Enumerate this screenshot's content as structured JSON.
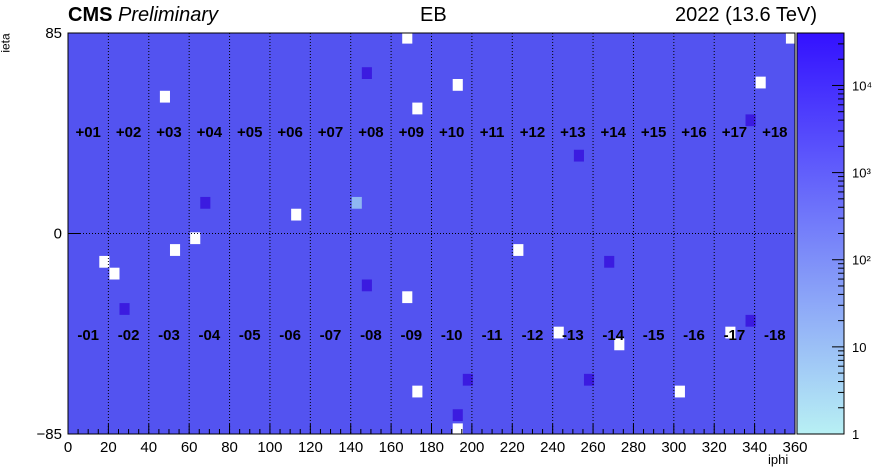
{
  "header": {
    "experiment_bold": "CMS",
    "experiment_italic": "Preliminary",
    "center_label": "EB",
    "right_label": "2022 (13.6 TeV)"
  },
  "colors": {
    "background_cell": "#5353f0",
    "colorbar_top": "#3311ff",
    "colorbar_bottom": "#b8f0f4",
    "dark_cell": "#3b1be0",
    "light_cell": "#8fb7f2",
    "dead_cell": "#ffffff",
    "grid_line": "#000000"
  },
  "chart_data": {
    "type": "heatmap",
    "xlabel": "iphi",
    "ylabel": "ieta",
    "xlim": [
      0,
      360
    ],
    "ylim": [
      -85,
      85
    ],
    "x_ticks": [
      0,
      20,
      40,
      60,
      80,
      100,
      120,
      140,
      160,
      180,
      200,
      220,
      240,
      260,
      280,
      300,
      320,
      340,
      360
    ],
    "y_ticks": [
      85,
      0,
      -85
    ],
    "y_tick_labels": [
      "85",
      "0",
      "−85"
    ],
    "z_scale": "log",
    "z_range": [
      1,
      40000
    ],
    "z_tick_labels": [
      "1",
      "10",
      "10²",
      "10³",
      "10⁴"
    ],
    "z_ticks": [
      1,
      10,
      100,
      1000,
      10000
    ],
    "supermodules_top": [
      "+01",
      "+02",
      "+03",
      "+04",
      "+05",
      "+06",
      "+07",
      "+08",
      "+09",
      "+10",
      "+11",
      "+12",
      "+13",
      "+14",
      "+15",
      "+16",
      "+17",
      "+18"
    ],
    "supermodules_bottom": [
      "-01",
      "-02",
      "-03",
      "-04",
      "-05",
      "-06",
      "-07",
      "-08",
      "-09",
      "-10",
      "-11",
      "-12",
      "-13",
      "-14",
      "-15",
      "-16",
      "-17",
      "-18"
    ],
    "supermodule_label_ieta": [
      43,
      -43
    ],
    "dead_towers": [
      {
        "iphi": 168,
        "ieta": 83
      },
      {
        "iphi": 358,
        "ieta": 83
      },
      {
        "iphi": 343,
        "ieta": 64
      },
      {
        "iphi": 48,
        "ieta": 58
      },
      {
        "iphi": 193,
        "ieta": 63
      },
      {
        "iphi": 173,
        "ieta": 53
      },
      {
        "iphi": 113,
        "ieta": 8
      },
      {
        "iphi": 63,
        "ieta": -2
      },
      {
        "iphi": 53,
        "ieta": -7
      },
      {
        "iphi": 18,
        "ieta": -12
      },
      {
        "iphi": 23,
        "ieta": -17
      },
      {
        "iphi": 223,
        "ieta": -7
      },
      {
        "iphi": 168,
        "ieta": -27
      },
      {
        "iphi": 243,
        "ieta": -42
      },
      {
        "iphi": 273,
        "ieta": -47
      },
      {
        "iphi": 328,
        "ieta": -42
      },
      {
        "iphi": 173,
        "ieta": -67
      },
      {
        "iphi": 303,
        "ieta": -67
      },
      {
        "iphi": 193,
        "ieta": -83
      }
    ],
    "hot_towers": [
      {
        "iphi": 148,
        "ieta": 68
      },
      {
        "iphi": 338,
        "ieta": 48
      },
      {
        "iphi": 253,
        "ieta": 33
      },
      {
        "iphi": 68,
        "ieta": 13
      },
      {
        "iphi": 268,
        "ieta": -12
      },
      {
        "iphi": 28,
        "ieta": -32
      },
      {
        "iphi": 148,
        "ieta": -22
      },
      {
        "iphi": 338,
        "ieta": -37
      },
      {
        "iphi": 198,
        "ieta": -62
      },
      {
        "iphi": 258,
        "ieta": -62
      },
      {
        "iphi": 193,
        "ieta": -77
      }
    ],
    "warm_towers": [
      {
        "iphi": 143,
        "ieta": 13
      }
    ]
  }
}
